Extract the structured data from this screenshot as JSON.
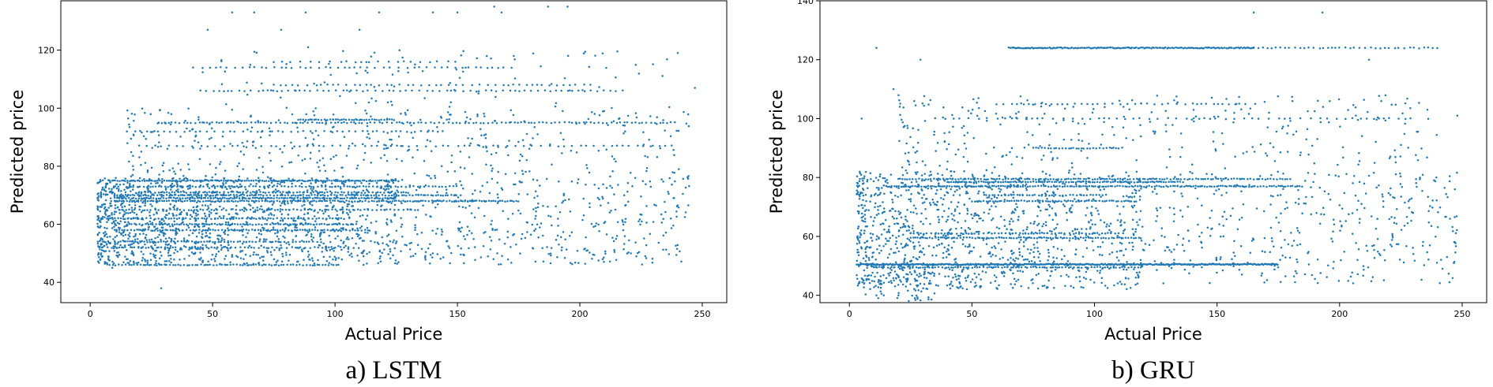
{
  "chart_data": [
    {
      "type": "scatter",
      "caption": "a) LSTM",
      "xlabel": "Actual Price",
      "ylabel": "Predicted price",
      "xlim": [
        -12,
        260
      ],
      "ylim": [
        33,
        137
      ],
      "xticks": [
        0,
        50,
        100,
        150,
        200,
        250
      ],
      "yticks": [
        40,
        60,
        80,
        100,
        120
      ],
      "grid": false,
      "color": "#1f77b4",
      "bands": [
        {
          "y": 46,
          "x": [
            7,
            102
          ],
          "step": 1.1
        },
        {
          "y": 52,
          "x": [
            5,
            110
          ],
          "step": 1.6
        },
        {
          "y": 54,
          "x": [
            10,
            95
          ],
          "step": 1.3
        },
        {
          "y": 58,
          "x": [
            10,
            115
          ],
          "step": 1.1
        },
        {
          "y": 60,
          "x": [
            15,
            110
          ],
          "step": 1.0
        },
        {
          "y": 62,
          "x": [
            5,
            105
          ],
          "step": 1.4
        },
        {
          "y": 65,
          "x": [
            12,
            135
          ],
          "step": 1.5
        },
        {
          "y": 68,
          "x": [
            10,
            175
          ],
          "step": 1.0
        },
        {
          "y": 69,
          "x": [
            10,
            125
          ],
          "step": 0.9
        },
        {
          "y": 70,
          "x": [
            10,
            150
          ],
          "step": 1.1
        },
        {
          "y": 71,
          "x": [
            20,
            130
          ],
          "step": 1.3
        },
        {
          "y": 73,
          "x": [
            15,
            150
          ],
          "step": 1.4
        },
        {
          "y": 75,
          "x": [
            8,
            125
          ],
          "step": 0.75
        },
        {
          "y": 95,
          "x": [
            28,
            240
          ],
          "step": 1.6
        },
        {
          "y": 96,
          "x": [
            85,
            125
          ],
          "step": 1.0
        },
        {
          "y": 92,
          "x": [
            15,
            146
          ],
          "step": 2.6
        },
        {
          "y": 87,
          "x": [
            20,
            240
          ],
          "step": 3.0
        },
        {
          "y": 106,
          "x": [
            45,
            220
          ],
          "step": 2.4
        },
        {
          "y": 108,
          "x": [
            75,
            205
          ],
          "step": 2.8
        },
        {
          "y": 114,
          "x": [
            42,
            175
          ],
          "step": 2.8
        },
        {
          "y": 116,
          "x": [
            75,
            150
          ],
          "step": 3.4
        }
      ],
      "clusters": [
        {
          "x": [
            3,
            125
          ],
          "y": [
            46,
            76
          ],
          "n": 1350,
          "power": 1.5
        },
        {
          "x": [
            120,
            245
          ],
          "y": [
            46,
            76
          ],
          "n": 420,
          "power": 1.0
        },
        {
          "x": [
            15,
            245
          ],
          "y": [
            76,
            100
          ],
          "n": 380,
          "power": 1.3
        },
        {
          "x": [
            40,
            240
          ],
          "y": [
            100,
            120
          ],
          "n": 90,
          "power": 1.0
        }
      ],
      "outliers": [
        [
          29,
          38
        ],
        [
          9,
          45
        ],
        [
          6,
          47
        ],
        [
          48,
          127
        ],
        [
          58,
          133
        ],
        [
          67,
          133
        ],
        [
          88,
          133
        ],
        [
          110,
          127
        ],
        [
          118,
          133
        ],
        [
          140,
          133
        ],
        [
          150,
          133
        ],
        [
          165,
          135
        ],
        [
          168,
          133
        ],
        [
          187,
          135
        ],
        [
          195,
          135
        ],
        [
          78,
          127
        ],
        [
          89,
          121
        ],
        [
          247,
          107
        ],
        [
          240,
          119
        ],
        [
          173,
          118
        ]
      ]
    },
    {
      "type": "scatter",
      "caption": "b) GRU",
      "xlabel": "Actual Price",
      "ylabel": "Predicted price",
      "xlim": [
        -12,
        260
      ],
      "ylim": [
        37.5,
        140
      ],
      "xticks": [
        0,
        50,
        100,
        150,
        200,
        250
      ],
      "yticks": [
        40,
        60,
        80,
        100,
        120,
        140
      ],
      "grid": false,
      "color": "#1f77b4",
      "bands": [
        {
          "y": 50.5,
          "x": [
            3,
            175
          ],
          "step": 0.45
        },
        {
          "y": 49.5,
          "x": [
            10,
            120
          ],
          "step": 1.2
        },
        {
          "y": 59.5,
          "x": [
            25,
            120
          ],
          "step": 1.0
        },
        {
          "y": 61,
          "x": [
            25,
            110
          ],
          "step": 1.5
        },
        {
          "y": 72,
          "x": [
            50,
            118
          ],
          "step": 1.0
        },
        {
          "y": 74,
          "x": [
            55,
            105
          ],
          "step": 1.3
        },
        {
          "y": 77,
          "x": [
            15,
            185
          ],
          "step": 0.9
        },
        {
          "y": 78.5,
          "x": [
            40,
            135
          ],
          "step": 0.9
        },
        {
          "y": 79.5,
          "x": [
            20,
            180
          ],
          "step": 1.1
        },
        {
          "y": 90,
          "x": [
            75,
            110
          ],
          "step": 1.1
        },
        {
          "y": 124,
          "x": [
            65,
            165
          ],
          "step": 0.6
        },
        {
          "y": 124,
          "x": [
            165,
            240
          ],
          "step": 1.9
        },
        {
          "y": 105,
          "x": [
            60,
            160
          ],
          "step": 2.6
        },
        {
          "y": 100,
          "x": [
            35,
            230
          ],
          "step": 3.2
        }
      ],
      "clusters": [
        {
          "x": [
            3,
            120
          ],
          "y": [
            42,
            82
          ],
          "n": 1150,
          "power": 1.4
        },
        {
          "x": [
            110,
            248
          ],
          "y": [
            44,
            82
          ],
          "n": 420,
          "power": 1.0
        },
        {
          "x": [
            20,
            240
          ],
          "y": [
            82,
            108
          ],
          "n": 300,
          "power": 1.3
        },
        {
          "x": [
            5,
            35
          ],
          "y": [
            38,
            52
          ],
          "n": 70,
          "power": 1.0
        }
      ],
      "outliers": [
        [
          11,
          124
        ],
        [
          165,
          136
        ],
        [
          193,
          136
        ],
        [
          29,
          120
        ],
        [
          18,
          110
        ],
        [
          5,
          100
        ],
        [
          212,
          120
        ],
        [
          248,
          101
        ],
        [
          247,
          76
        ],
        [
          245,
          66
        ],
        [
          242,
          49
        ],
        [
          11,
          40
        ],
        [
          14,
          40
        ],
        [
          20,
          40
        ]
      ]
    }
  ]
}
